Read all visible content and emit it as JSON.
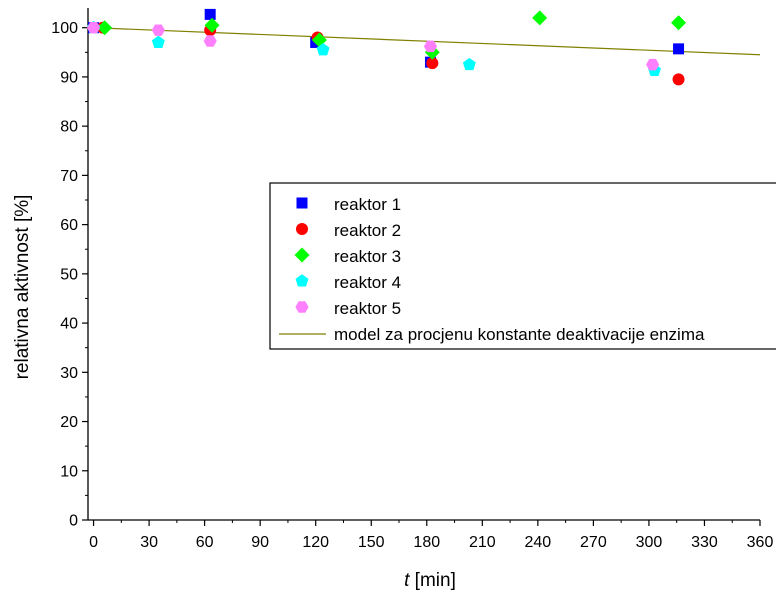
{
  "chart_data": {
    "type": "scatter",
    "xlabel_italic": "t",
    "xlabel_rest": " [min]",
    "ylabel": "relativna aktivnost [%]",
    "xlim": [
      -3,
      360
    ],
    "ylim": [
      0,
      104
    ],
    "x_ticks": [
      "0",
      "30",
      "60",
      "90",
      "120",
      "150",
      "180",
      "210",
      "240",
      "270",
      "300",
      "330",
      "360"
    ],
    "y_ticks": [
      "0",
      "10",
      "20",
      "30",
      "40",
      "50",
      "60",
      "70",
      "80",
      "90",
      "100"
    ],
    "legend_position": "right-middle",
    "series": [
      {
        "name": "reaktor 1",
        "marker": "square",
        "color": "#0000ff",
        "x": [
          0,
          63,
          120,
          182,
          316
        ],
        "y": [
          100,
          102.7,
          97,
          93,
          95.7
        ]
      },
      {
        "name": "reaktor 2",
        "marker": "circle",
        "color": "#ff0000",
        "x": [
          5,
          63,
          121,
          183,
          316
        ],
        "y": [
          100,
          99.5,
          98,
          92.8,
          89.5
        ]
      },
      {
        "name": "reaktor 3",
        "marker": "diamond",
        "color": "#00ff00",
        "x": [
          6,
          64,
          122,
          183,
          241,
          316
        ],
        "y": [
          100,
          100.5,
          97.5,
          95,
          102,
          101
        ]
      },
      {
        "name": "reaktor 4",
        "marker": "pentagon",
        "color": "#00ffff",
        "x": [
          0,
          35,
          124,
          203,
          303
        ],
        "y": [
          100,
          97,
          95.5,
          92.5,
          91.3
        ]
      },
      {
        "name": "reaktor 5",
        "marker": "hexagon",
        "color": "#ff80ff",
        "x": [
          0,
          35,
          63,
          182,
          302
        ],
        "y": [
          100,
          99.5,
          97.3,
          96.2,
          92.5
        ]
      }
    ],
    "model": {
      "name": "model za procjenu konstante deaktivacije enzima",
      "color": "#808000",
      "x": [
        0,
        360
      ],
      "y": [
        100,
        94.5
      ]
    }
  }
}
